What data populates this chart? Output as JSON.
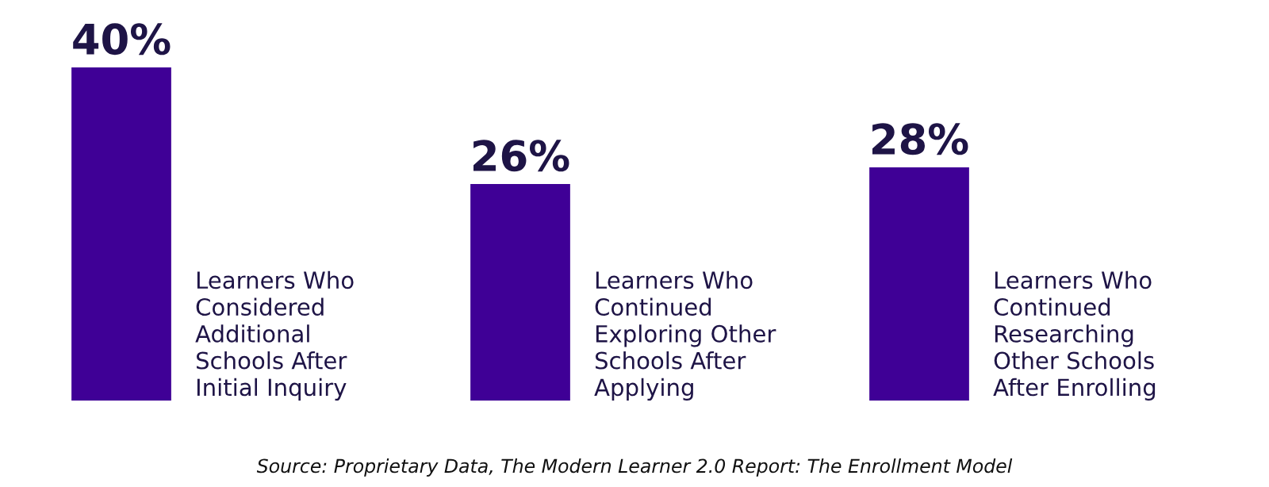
{
  "chart_data": {
    "type": "bar",
    "categories": [
      "Learners Who\nConsidered\nAdditional\nSchools After\nInitial Inquiry",
      "Learners Who\nContinued\nExploring Other\nSchools After\nApplying",
      "Learners Who\nContinued\nResearching\nOther Schools\nAfter Enrolling"
    ],
    "values": [
      40,
      26,
      28
    ],
    "value_labels": [
      "40%",
      "26%",
      "28%"
    ],
    "color": "#3f0096",
    "annotations": [
      "Source: Proprietary Data, The Modern Learner 2.0 Report: The Enrollment Model"
    ]
  }
}
